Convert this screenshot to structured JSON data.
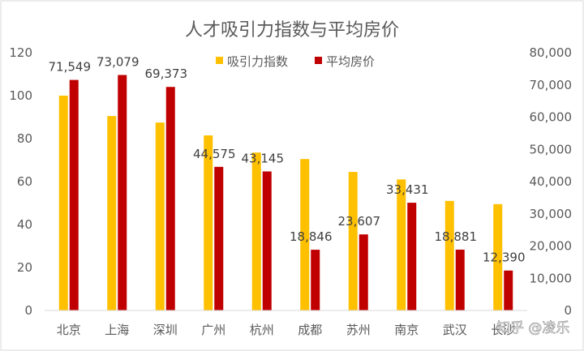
{
  "chart_data": {
    "type": "bar",
    "title": "人才吸引力指数与平均房价",
    "categories": [
      "北京",
      "上海",
      "深圳",
      "广州",
      "杭州",
      "成都",
      "苏州",
      "南京",
      "武汉",
      "长沙"
    ],
    "series": [
      {
        "name": "吸引力指数",
        "axis": "left",
        "color": "#FFC000",
        "values": [
          100,
          90.5,
          87.5,
          81.5,
          73.5,
          70.5,
          64.5,
          61,
          51,
          49.5
        ]
      },
      {
        "name": "平均房价",
        "axis": "right",
        "color": "#C00000",
        "values": [
          71549,
          73079,
          69373,
          44575,
          43145,
          18846,
          23607,
          33431,
          18881,
          12390
        ],
        "data_labels": [
          "71,549",
          "73,079",
          "69,373",
          "44,575",
          "43,145",
          "18,846",
          "23,607",
          "33,431",
          "18,881",
          "12,390"
        ]
      }
    ],
    "y_left": {
      "ylim": [
        0,
        120
      ],
      "ticks": [
        "0",
        "20",
        "40",
        "60",
        "80",
        "100",
        "120"
      ]
    },
    "y_right": {
      "ylim": [
        0,
        80000
      ],
      "ticks": [
        "0",
        "10,000",
        "20,000",
        "30,000",
        "40,000",
        "50,000",
        "60,000",
        "70,000",
        "80,000"
      ]
    },
    "grid": false,
    "legend_position": "top-center"
  },
  "watermark": "知乎 @凌乐"
}
